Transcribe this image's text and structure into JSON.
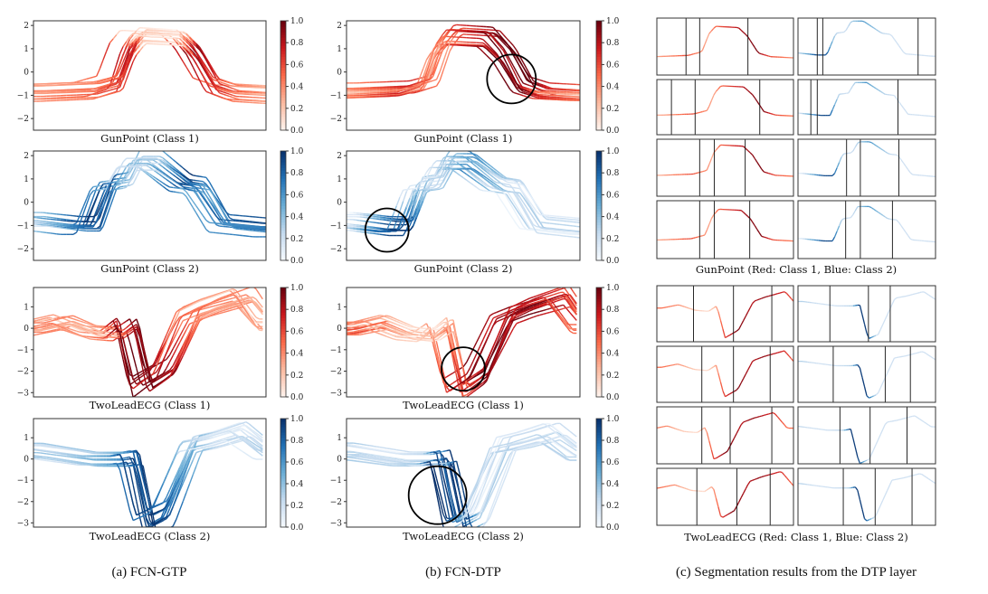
{
  "captions": {
    "a": "(a) FCN-GTP",
    "b": "(b) FCN-DTP",
    "c": "(c) Segmentation results from the DTP layer",
    "c_gunpoint": "GunPoint (Red: Class 1, Blue: Class 2)",
    "c_twolead": "TwoLeadECG (Red: Class 1, Blue: Class 2)"
  },
  "colors": {
    "class1_cmap": "Reds",
    "class2_cmap": "Blues",
    "circle": "#000000"
  },
  "colorbar_ticks": [
    "0.0",
    "0.2",
    "0.4",
    "0.6",
    "0.8",
    "1.0"
  ],
  "chart_data": [
    {
      "type": "line",
      "panel": "a1",
      "title": "GunPoint (Class 1)",
      "cmap": "Reds",
      "ylim": [
        -2.5,
        2.2
      ],
      "yticks": [
        "−2",
        "−1",
        "0",
        "1",
        "2"
      ],
      "ytick_values": [
        -2,
        -1,
        0,
        1,
        2
      ],
      "length": 150,
      "prototype": {
        "x": [
          0,
          35,
          50,
          58,
          65,
          90,
          100,
          112,
          125,
          150
        ],
        "y": [
          -0.9,
          -0.8,
          -0.5,
          1.0,
          1.6,
          1.5,
          0.8,
          -0.6,
          -0.9,
          -1.0
        ],
        "weight": [
          0.4,
          0.5,
          0.6,
          0.8,
          0.2,
          0.1,
          0.9,
          0.7,
          0.5,
          0.3
        ]
      }
    },
    {
      "type": "line",
      "panel": "a2",
      "title": "GunPoint (Class 2)",
      "cmap": "Blues",
      "ylim": [
        -2.5,
        2.2
      ],
      "yticks": [
        "−2",
        "−1",
        "0",
        "1",
        "2"
      ],
      "ytick_values": [
        -2,
        -1,
        0,
        1,
        2
      ],
      "length": 150,
      "prototype": {
        "x": [
          0,
          25,
          35,
          45,
          55,
          62,
          75,
          95,
          105,
          120,
          150
        ],
        "y": [
          -0.8,
          -1.0,
          -1.0,
          0.8,
          0.9,
          1.8,
          1.8,
          0.8,
          0.7,
          -0.9,
          -1.1
        ],
        "weight": [
          0.3,
          0.8,
          0.9,
          0.8,
          0.4,
          0.3,
          0.3,
          0.9,
          0.6,
          0.7,
          0.8
        ]
      }
    },
    {
      "type": "line",
      "panel": "a3",
      "title": "TwoLeadECG (Class 1)",
      "cmap": "Reds",
      "ylim": [
        -3.2,
        1.9
      ],
      "yticks": [
        "−3",
        "−2",
        "−1",
        "0",
        "1"
      ],
      "ytick_values": [
        -3,
        -2,
        -1,
        0,
        1
      ],
      "length": 82,
      "prototype": {
        "x": [
          0,
          10,
          20,
          28,
          33,
          38,
          46,
          55,
          62,
          74,
          82
        ],
        "y": [
          0,
          0.3,
          -0.2,
          -0.3,
          0.2,
          -2.7,
          -2.0,
          0.6,
          1.0,
          1.5,
          0.1
        ],
        "weight": [
          0.3,
          0.3,
          0.2,
          0.4,
          0.85,
          0.9,
          0.8,
          0.4,
          0.3,
          0.3,
          0.2
        ]
      }
    },
    {
      "type": "line",
      "panel": "a4",
      "title": "TwoLeadECG (Class 2)",
      "cmap": "Blues",
      "ylim": [
        -3.2,
        1.9
      ],
      "yticks": [
        "−3",
        "−2",
        "−1",
        "0",
        "1"
      ],
      "ytick_values": [
        -3,
        -2,
        -1,
        0,
        1
      ],
      "length": 82,
      "prototype": {
        "x": [
          0,
          10,
          20,
          30,
          34,
          39,
          45,
          55,
          62,
          72,
          82
        ],
        "y": [
          0.4,
          0.2,
          0.0,
          0.0,
          0.1,
          -3.0,
          -2.6,
          0.7,
          0.9,
          1.3,
          0.3
        ],
        "weight": [
          0.3,
          0.3,
          0.4,
          0.6,
          0.9,
          0.95,
          0.85,
          0.4,
          0.2,
          0.2,
          0.3
        ]
      }
    },
    {
      "type": "line",
      "panel": "b1",
      "title": "GunPoint (Class 1)",
      "cmap": "Reds",
      "ylim": [
        -2.5,
        2.2
      ],
      "yticks": [
        "−2",
        "−1",
        "0",
        "1",
        "2"
      ],
      "ytick_values": [
        -2,
        -1,
        0,
        1,
        2
      ],
      "length": 150,
      "highlight": {
        "x": 106,
        "y": -0.3
      },
      "prototype": {
        "x": [
          0,
          35,
          50,
          58,
          65,
          90,
          100,
          112,
          125,
          150
        ],
        "y": [
          -0.9,
          -0.8,
          -0.5,
          1.0,
          1.6,
          1.5,
          0.8,
          -0.6,
          -0.9,
          -1.0
        ],
        "weight": [
          0.3,
          0.6,
          0.4,
          0.3,
          0.5,
          0.8,
          0.9,
          0.95,
          0.6,
          0.4
        ]
      }
    },
    {
      "type": "line",
      "panel": "b2",
      "title": "GunPoint (Class 2)",
      "cmap": "Blues",
      "ylim": [
        -2.5,
        2.2
      ],
      "yticks": [
        "−2",
        "−1",
        "0",
        "1",
        "2"
      ],
      "ytick_values": [
        -2,
        -1,
        0,
        1,
        2
      ],
      "length": 150,
      "highlight": {
        "x": 26,
        "y": -1.2
      },
      "prototype": {
        "x": [
          0,
          25,
          35,
          45,
          55,
          62,
          75,
          95,
          105,
          120,
          150
        ],
        "y": [
          -0.8,
          -1.0,
          -1.0,
          0.8,
          0.9,
          1.8,
          1.8,
          0.8,
          0.7,
          -0.9,
          -1.1
        ],
        "weight": [
          0.1,
          0.9,
          0.9,
          0.3,
          0.2,
          0.3,
          0.6,
          0.3,
          0.2,
          0.2,
          0.2
        ]
      }
    },
    {
      "type": "line",
      "panel": "b3",
      "title": "TwoLeadECG (Class 1)",
      "cmap": "Reds",
      "ylim": [
        -3.2,
        1.9
      ],
      "yticks": [
        "−3",
        "−2",
        "−1",
        "0",
        "1"
      ],
      "ytick_values": [
        -3,
        -2,
        -1,
        0,
        1
      ],
      "length": 82,
      "highlight": {
        "x": 41,
        "y": -1.9
      },
      "prototype": {
        "x": [
          0,
          10,
          20,
          28,
          33,
          38,
          46,
          55,
          62,
          74,
          82
        ],
        "y": [
          0,
          0.3,
          -0.2,
          -0.3,
          0.2,
          -2.7,
          -2.0,
          0.6,
          1.0,
          1.5,
          0.1
        ],
        "weight": [
          0.5,
          0.4,
          0.2,
          0.1,
          0.3,
          0.6,
          0.95,
          0.8,
          0.9,
          0.7,
          0.5
        ]
      }
    },
    {
      "type": "line",
      "panel": "b4",
      "title": "TwoLeadECG (Class 2)",
      "cmap": "Blues",
      "ylim": [
        -3.2,
        1.9
      ],
      "yticks": [
        "−3",
        "−2",
        "−1",
        "0",
        "1"
      ],
      "ytick_values": [
        -3,
        -2,
        -1,
        0,
        1
      ],
      "length": 82,
      "highlight": {
        "x": 32,
        "y": -1.7
      },
      "prototype": {
        "x": [
          0,
          10,
          20,
          30,
          34,
          39,
          45,
          55,
          62,
          72,
          82
        ],
        "y": [
          0.4,
          0.2,
          0.0,
          0.0,
          0.1,
          -3.0,
          -2.6,
          0.7,
          0.9,
          1.3,
          0.3
        ],
        "weight": [
          0.3,
          0.2,
          0.2,
          0.3,
          0.95,
          0.95,
          0.2,
          0.2,
          0.2,
          0.2,
          0.2
        ]
      }
    }
  ],
  "segmentation": {
    "gunpoint": {
      "length": 150,
      "ylim": [
        -2.5,
        2.2
      ],
      "class1_boundaries": [
        [
          32,
          47,
          100
        ],
        [
          16,
          42,
          113
        ],
        [
          47,
          63,
          97
        ],
        [
          47,
          63,
          102
        ]
      ],
      "class2_boundaries": [
        [
          21,
          27,
          131
        ],
        [
          14,
          21,
          109
        ],
        [
          53,
          68,
          110
        ],
        [
          52,
          68,
          103
        ]
      ]
    },
    "twolead": {
      "length": 82,
      "ylim": [
        -3.2,
        1.9
      ],
      "class1_boundaries": [
        [
          22,
          46,
          69
        ],
        [
          27,
          46,
          68
        ],
        [
          27,
          44,
          69
        ],
        [
          24,
          48,
          68
        ]
      ],
      "class2_boundaries": [
        [
          19,
          42,
          55
        ],
        [
          21,
          52,
          67
        ],
        [
          25,
          43,
          65
        ],
        [
          27,
          46,
          68
        ]
      ]
    }
  }
}
